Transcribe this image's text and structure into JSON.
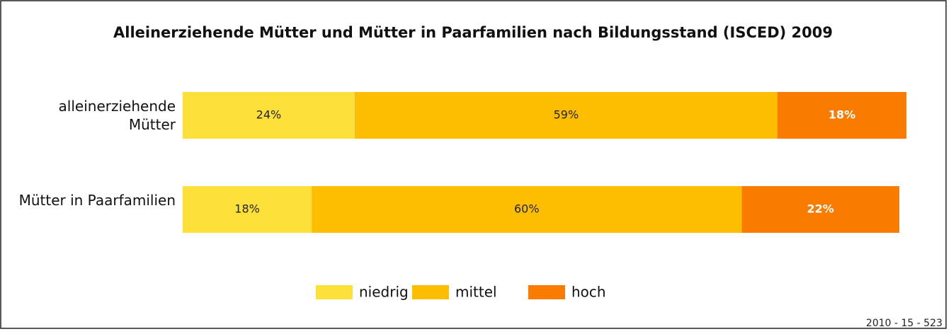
{
  "chart_data": {
    "type": "stacked_barh",
    "title": "Alleinerziehende Mütter und Mütter in Paarfamilien nach Bildungsstand (ISCED) 2009",
    "categories": [
      "alleinerziehende Mütter",
      "Mütter in Paarfamilien"
    ],
    "series": [
      {
        "name": "niedrig",
        "color": "#fde03a",
        "label_color": "#222222",
        "values": [
          24,
          18
        ],
        "value_labels": [
          "24%",
          "18%"
        ]
      },
      {
        "name": "mittel",
        "color": "#fdbd00",
        "label_color": "#222222",
        "values": [
          59,
          60
        ],
        "value_labels": [
          "59%",
          "60%"
        ]
      },
      {
        "name": "hoch",
        "color": "#f97b00",
        "label_color": "#ffffff",
        "values": [
          18,
          22
        ],
        "value_labels": [
          "18%",
          "22%"
        ]
      }
    ],
    "xlim": [
      0,
      100
    ],
    "legend": "bottom",
    "note": "2010 - 15 - 523"
  }
}
